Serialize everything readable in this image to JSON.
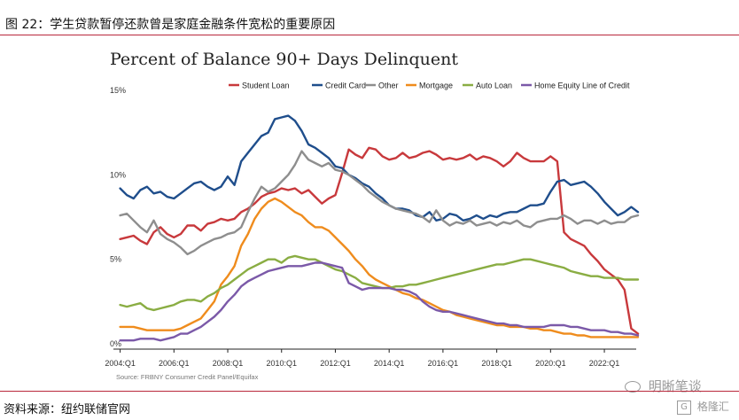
{
  "figure_title": "图 22：学生贷款暂停还款曾是家庭金融条件宽松的重要原因",
  "source_note": "资料来源：纽约联储官网",
  "watermark": "明晰笔谈",
  "logo_text": "格隆汇",
  "colors": {
    "rule": "#b8283b",
    "student_loan": "#c8393c",
    "credit_card": "#1f4e8c",
    "other": "#8e8e8e",
    "mortgage": "#ef8c1d",
    "auto_loan": "#8aad43",
    "heloc": "#7b59a8"
  },
  "chart_data": {
    "type": "line",
    "title": "Percent of Balance 90+ Days Delinquent",
    "source_text": "Source: FRBNY Consumer Credit Panel/Equifax",
    "xlabel": "",
    "ylabel": "",
    "ylim": [
      0,
      15
    ],
    "xlim": [
      "2003:Q4",
      "2023:Q2"
    ],
    "y_ticks": [
      "0%",
      "5%",
      "10%",
      "15%"
    ],
    "x_ticks": [
      "2004:Q1",
      "2006:Q1",
      "2008:Q1",
      "2010:Q1",
      "2012:Q1",
      "2014:Q1",
      "2016:Q1",
      "2018:Q1",
      "2020:Q1",
      "2022:Q1"
    ],
    "grid": false,
    "legend_position": "top",
    "x_start": "2004:Q1",
    "x_step": "one quarter",
    "series": [
      {
        "name": "Student Loan",
        "color_key": "student_loan",
        "values": [
          6.2,
          6.3,
          6.4,
          6.1,
          5.9,
          6.6,
          6.9,
          6.5,
          6.3,
          6.5,
          7.0,
          7.0,
          6.7,
          7.1,
          7.2,
          7.4,
          7.3,
          7.4,
          7.8,
          8.0,
          8.3,
          8.7,
          8.9,
          9.0,
          9.2,
          9.1,
          9.2,
          8.9,
          9.1,
          8.7,
          8.3,
          8.6,
          8.8,
          10.1,
          11.5,
          11.2,
          11.0,
          11.6,
          11.5,
          11.1,
          10.9,
          11.0,
          11.3,
          11.0,
          11.1,
          11.3,
          11.4,
          11.2,
          10.9,
          11.0,
          10.9,
          11.0,
          11.2,
          10.9,
          11.1,
          11.0,
          10.8,
          10.5,
          10.8,
          11.3,
          11.0,
          10.8,
          10.8,
          10.8,
          11.1,
          10.8,
          6.6,
          6.2,
          6.0,
          5.8,
          5.3,
          4.9,
          4.4,
          4.1,
          3.8,
          3.2,
          0.9,
          0.6
        ]
      },
      {
        "name": "Credit Card",
        "color_key": "credit_card",
        "values": [
          9.2,
          8.8,
          8.6,
          9.1,
          9.3,
          8.9,
          9.0,
          8.7,
          8.6,
          8.9,
          9.2,
          9.5,
          9.6,
          9.3,
          9.1,
          9.3,
          9.9,
          9.4,
          10.8,
          11.3,
          11.8,
          12.3,
          12.5,
          13.3,
          13.4,
          13.5,
          13.2,
          12.6,
          11.8,
          11.6,
          11.3,
          11.0,
          10.5,
          10.4,
          10.0,
          9.8,
          9.5,
          9.3,
          8.9,
          8.6,
          8.2,
          8.0,
          8.0,
          7.9,
          7.6,
          7.5,
          7.8,
          7.3,
          7.4,
          7.7,
          7.6,
          7.3,
          7.4,
          7.6,
          7.4,
          7.6,
          7.5,
          7.7,
          7.8,
          7.8,
          8.0,
          8.2,
          8.2,
          8.3,
          9.0,
          9.6,
          9.7,
          9.4,
          9.5,
          9.6,
          9.3,
          8.9,
          8.4,
          8.0,
          7.6,
          7.8,
          8.1,
          7.8
        ]
      },
      {
        "name": "Other",
        "color_key": "other",
        "values": [
          7.6,
          7.7,
          7.3,
          6.9,
          6.6,
          7.3,
          6.5,
          6.2,
          6.0,
          5.7,
          5.3,
          5.5,
          5.8,
          6.0,
          6.2,
          6.3,
          6.5,
          6.6,
          6.9,
          7.8,
          8.6,
          9.3,
          9.0,
          9.2,
          9.6,
          10.0,
          10.6,
          11.4,
          10.9,
          10.7,
          10.5,
          10.7,
          10.3,
          10.2,
          10.0,
          9.7,
          9.4,
          9.0,
          8.7,
          8.4,
          8.2,
          8.0,
          7.9,
          7.8,
          7.7,
          7.5,
          7.2,
          7.9,
          7.3,
          7.0,
          7.2,
          7.1,
          7.3,
          7.0,
          7.1,
          7.2,
          7.0,
          7.2,
          7.1,
          7.3,
          7.0,
          6.9,
          7.2,
          7.3,
          7.4,
          7.4,
          7.6,
          7.4,
          7.1,
          7.3,
          7.3,
          7.1,
          7.3,
          7.1,
          7.2,
          7.2,
          7.5,
          7.6
        ]
      },
      {
        "name": "Mortgage",
        "color_key": "mortgage",
        "values": [
          1.0,
          1.0,
          1.0,
          0.9,
          0.8,
          0.8,
          0.8,
          0.8,
          0.8,
          0.9,
          1.1,
          1.3,
          1.5,
          2.0,
          2.5,
          3.5,
          4.0,
          4.6,
          5.8,
          6.5,
          7.4,
          8.0,
          8.4,
          8.6,
          8.4,
          8.1,
          7.8,
          7.6,
          7.2,
          6.9,
          6.9,
          6.7,
          6.3,
          5.9,
          5.5,
          5.0,
          4.6,
          4.1,
          3.8,
          3.6,
          3.4,
          3.2,
          3.0,
          2.9,
          2.7,
          2.6,
          2.4,
          2.2,
          2.0,
          1.9,
          1.7,
          1.6,
          1.5,
          1.4,
          1.3,
          1.2,
          1.1,
          1.1,
          1.0,
          1.0,
          1.0,
          0.9,
          0.9,
          0.8,
          0.8,
          0.7,
          0.6,
          0.6,
          0.5,
          0.5,
          0.4,
          0.4,
          0.4,
          0.4,
          0.4,
          0.4,
          0.4,
          0.4
        ]
      },
      {
        "name": "Auto Loan",
        "color_key": "auto_loan",
        "values": [
          2.3,
          2.2,
          2.3,
          2.4,
          2.1,
          2.0,
          2.1,
          2.2,
          2.3,
          2.5,
          2.6,
          2.6,
          2.5,
          2.8,
          3.0,
          3.3,
          3.5,
          3.8,
          4.1,
          4.4,
          4.6,
          4.8,
          5.0,
          5.0,
          4.8,
          5.1,
          5.2,
          5.1,
          5.0,
          5.0,
          4.8,
          4.6,
          4.4,
          4.3,
          4.1,
          3.9,
          3.6,
          3.5,
          3.4,
          3.3,
          3.3,
          3.4,
          3.4,
          3.5,
          3.5,
          3.6,
          3.7,
          3.8,
          3.9,
          4.0,
          4.1,
          4.2,
          4.3,
          4.4,
          4.5,
          4.6,
          4.7,
          4.7,
          4.8,
          4.9,
          5.0,
          5.0,
          4.9,
          4.8,
          4.7,
          4.6,
          4.5,
          4.3,
          4.2,
          4.1,
          4.0,
          4.0,
          3.9,
          3.9,
          3.9,
          3.8,
          3.8,
          3.8
        ]
      },
      {
        "name": "Home Equity Line of Credit",
        "color_key": "heloc",
        "values": [
          0.2,
          0.2,
          0.2,
          0.3,
          0.3,
          0.3,
          0.2,
          0.3,
          0.4,
          0.6,
          0.6,
          0.8,
          1.0,
          1.3,
          1.6,
          2.0,
          2.5,
          2.9,
          3.4,
          3.7,
          3.9,
          4.1,
          4.3,
          4.4,
          4.5,
          4.6,
          4.6,
          4.6,
          4.7,
          4.8,
          4.8,
          4.7,
          4.6,
          4.5,
          3.6,
          3.4,
          3.2,
          3.3,
          3.3,
          3.3,
          3.3,
          3.2,
          3.2,
          3.1,
          2.9,
          2.5,
          2.2,
          2.0,
          1.9,
          1.9,
          1.8,
          1.7,
          1.6,
          1.5,
          1.4,
          1.3,
          1.2,
          1.2,
          1.1,
          1.1,
          1.0,
          1.0,
          1.0,
          1.0,
          1.1,
          1.1,
          1.1,
          1.0,
          1.0,
          0.9,
          0.8,
          0.8,
          0.8,
          0.7,
          0.7,
          0.6,
          0.6,
          0.5
        ]
      }
    ]
  }
}
